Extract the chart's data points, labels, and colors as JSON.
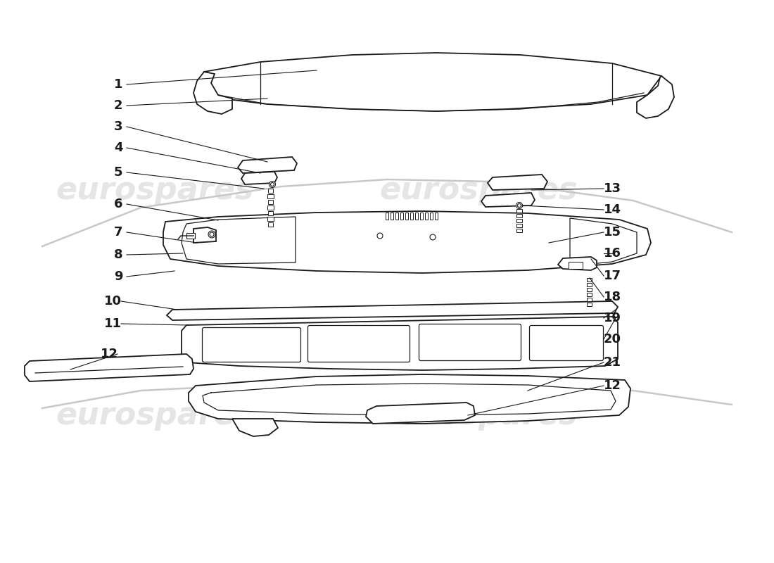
{
  "background_color": "#ffffff",
  "line_color": "#1a1a1a",
  "label_color": "#1a1a1a",
  "watermark_text": "eurospares",
  "figsize": [
    11.0,
    8.0
  ],
  "dpi": 100,
  "left_labels": [
    [
      "1",
      168,
      128
    ],
    [
      "2",
      168,
      162
    ],
    [
      "3",
      168,
      192
    ],
    [
      "4",
      168,
      220
    ],
    [
      "5",
      168,
      252
    ],
    [
      "6",
      168,
      298
    ],
    [
      "7",
      168,
      338
    ],
    [
      "8",
      168,
      370
    ],
    [
      "9",
      168,
      402
    ],
    [
      "10",
      160,
      435
    ],
    [
      "11",
      160,
      468
    ],
    [
      "12",
      155,
      510
    ]
  ],
  "right_labels": [
    [
      "13",
      870,
      290
    ],
    [
      "14",
      870,
      318
    ],
    [
      "15",
      870,
      350
    ],
    [
      "16",
      870,
      378
    ],
    [
      "17",
      870,
      408
    ],
    [
      "18",
      870,
      438
    ],
    [
      "19",
      870,
      468
    ],
    [
      "20",
      870,
      498
    ],
    [
      "21",
      870,
      528
    ],
    [
      "12",
      870,
      558
    ]
  ]
}
